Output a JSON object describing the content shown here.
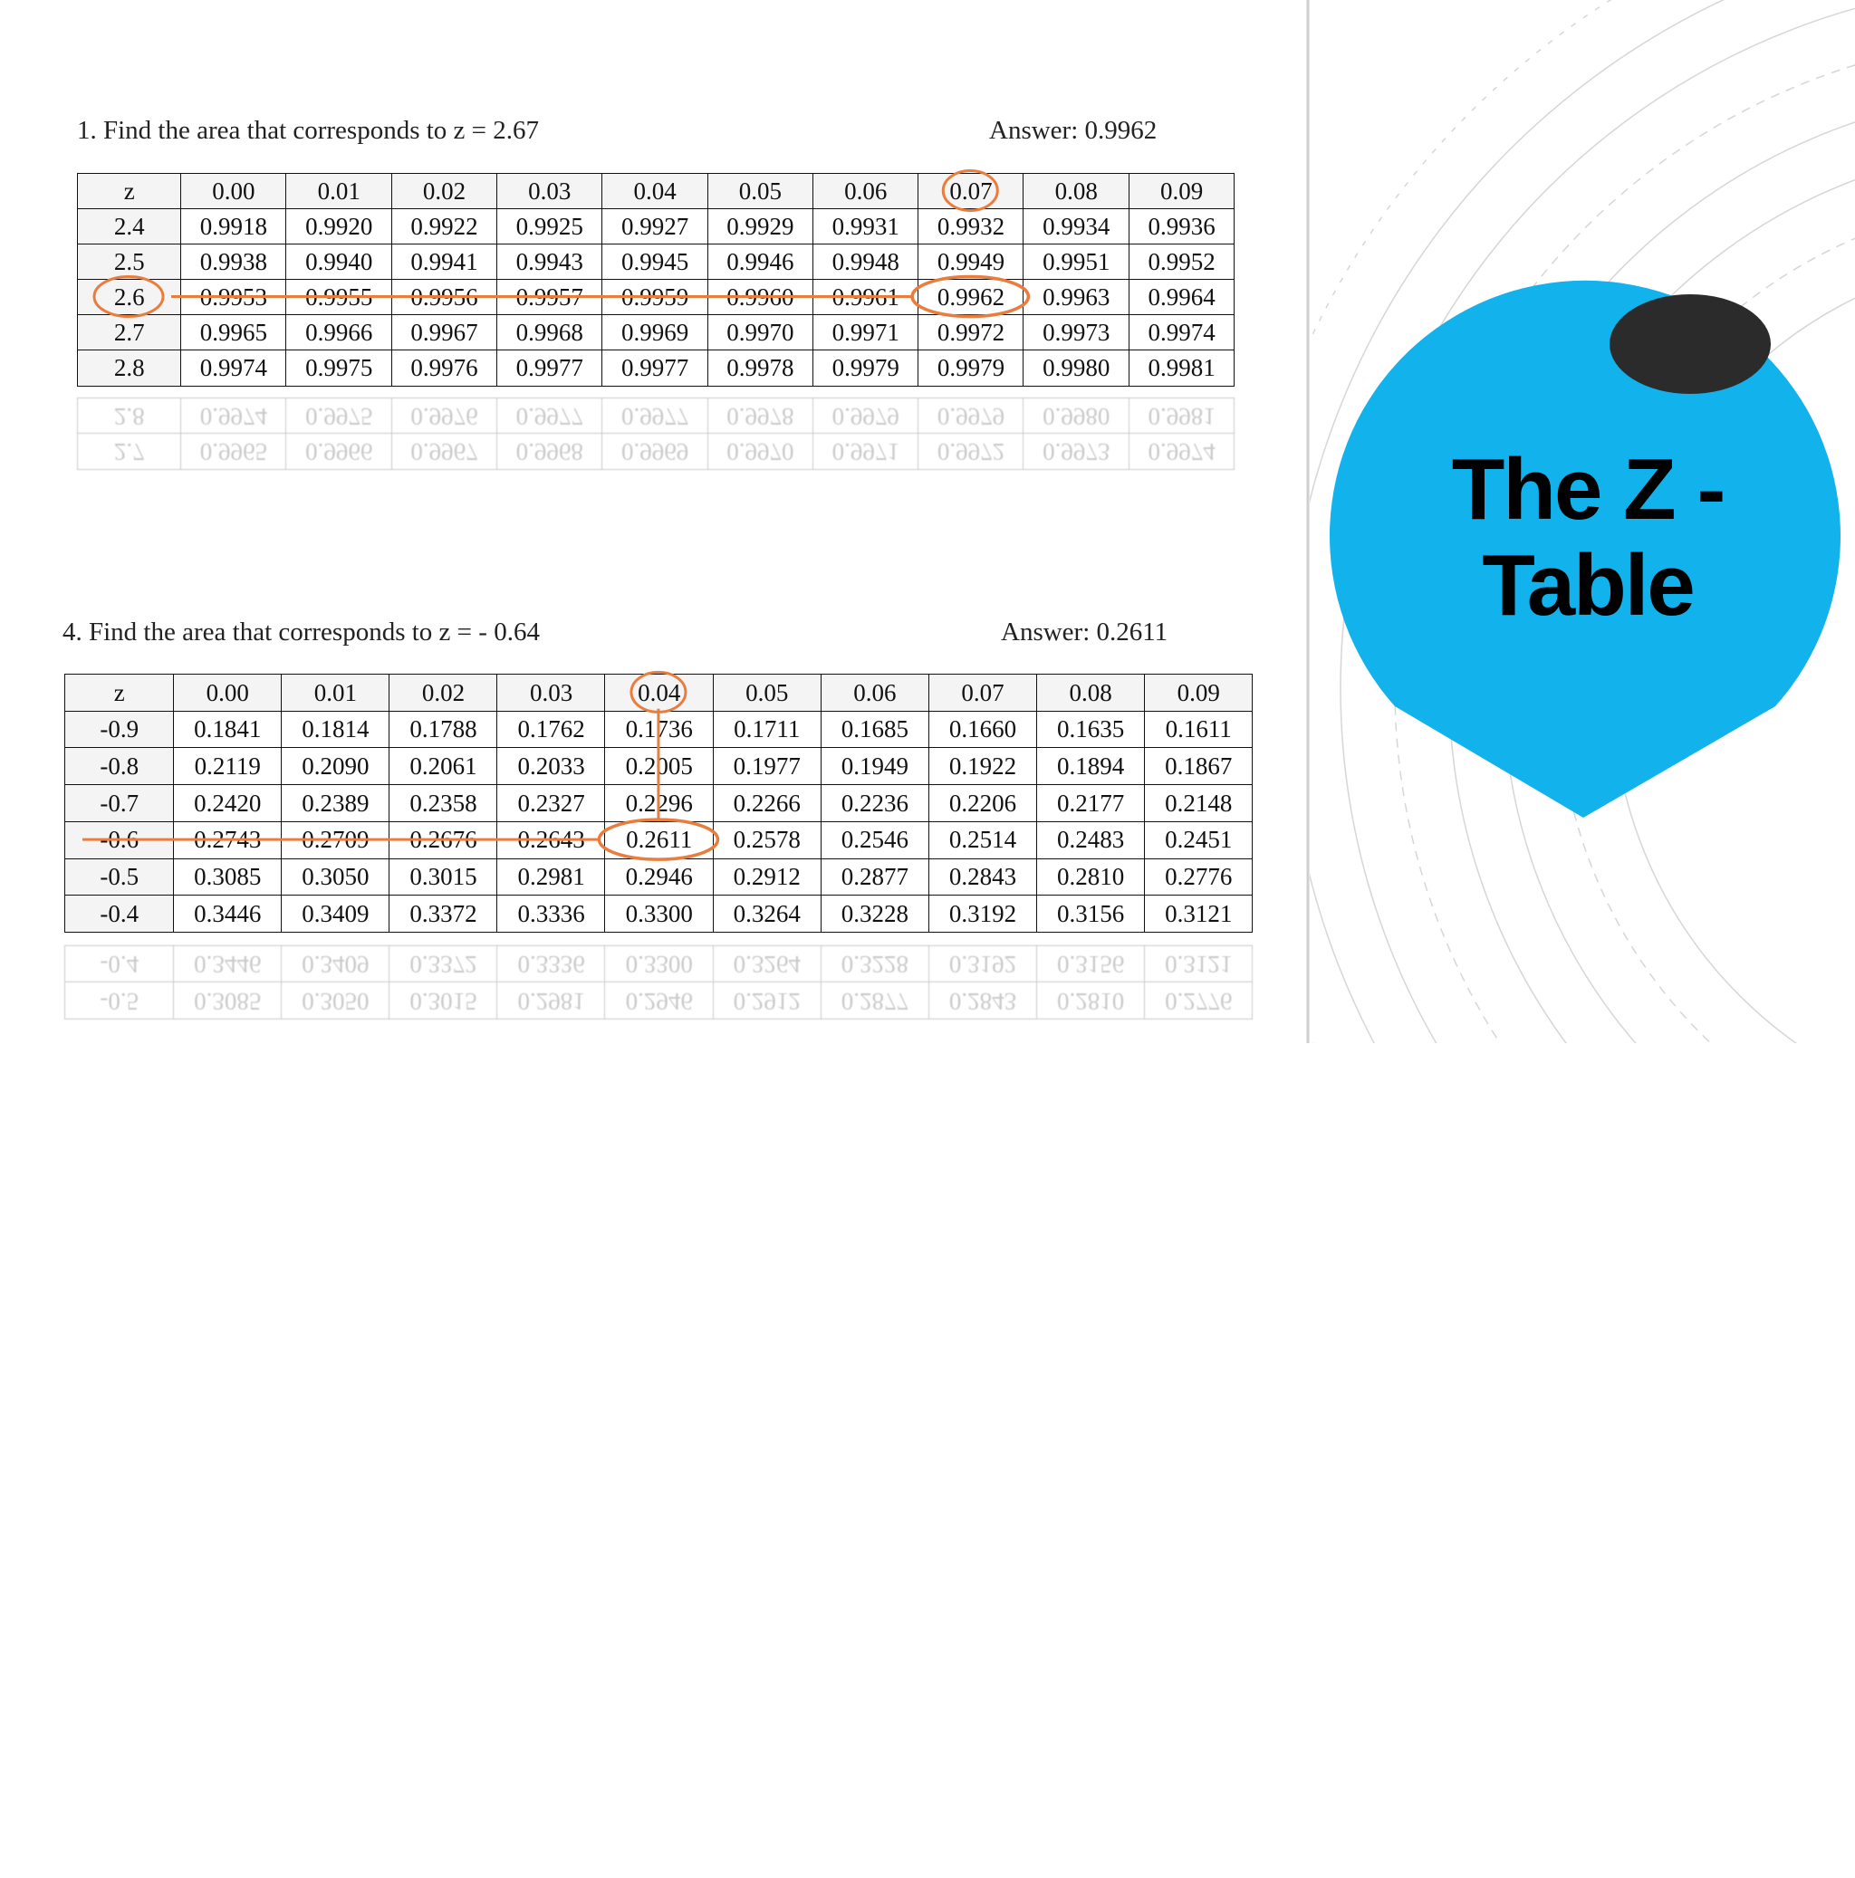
{
  "problems": [
    {
      "question": "1. Find the area that corresponds to z = 2.67",
      "answer": "Answer: 0.9962",
      "table": {
        "header": [
          "z",
          "0.00",
          "0.01",
          "0.02",
          "0.03",
          "0.04",
          "0.05",
          "0.06",
          "0.07",
          "0.08",
          "0.09"
        ],
        "rows": [
          [
            "2.4",
            "0.9918",
            "0.9920",
            "0.9922",
            "0.9925",
            "0.9927",
            "0.9929",
            "0.9931",
            "0.9932",
            "0.9934",
            "0.9936"
          ],
          [
            "2.5",
            "0.9938",
            "0.9940",
            "0.9941",
            "0.9943",
            "0.9945",
            "0.9946",
            "0.9948",
            "0.9949",
            "0.9951",
            "0.9952"
          ],
          [
            "2.6",
            "0.9953",
            "0.9955",
            "0.9956",
            "0.9957",
            "0.9959",
            "0.9960",
            "0.9961",
            "0.9962",
            "0.9963",
            "0.9964"
          ],
          [
            "2.7",
            "0.9965",
            "0.9966",
            "0.9967",
            "0.9968",
            "0.9969",
            "0.9970",
            "0.9971",
            "0.9972",
            "0.9973",
            "0.9974"
          ],
          [
            "2.8",
            "0.9974",
            "0.9975",
            "0.9976",
            "0.9977",
            "0.9977",
            "0.9978",
            "0.9979",
            "0.9979",
            "0.9980",
            "0.9981"
          ]
        ]
      }
    },
    {
      "question": "4. Find the area that corresponds to z = - 0.64",
      "answer": "Answer: 0.2611",
      "table": {
        "header": [
          "z",
          "0.00",
          "0.01",
          "0.02",
          "0.03",
          "0.04",
          "0.05",
          "0.06",
          "0.07",
          "0.08",
          "0.09"
        ],
        "rows": [
          [
            "-0.9",
            "0.1841",
            "0.1814",
            "0.1788",
            "0.1762",
            "0.1736",
            "0.1711",
            "0.1685",
            "0.1660",
            "0.1635",
            "0.1611"
          ],
          [
            "-0.8",
            "0.2119",
            "0.2090",
            "0.2061",
            "0.2033",
            "0.2005",
            "0.1977",
            "0.1949",
            "0.1922",
            "0.1894",
            "0.1867"
          ],
          [
            "-0.7",
            "0.2420",
            "0.2389",
            "0.2358",
            "0.2327",
            "0.2296",
            "0.2266",
            "0.2236",
            "0.2206",
            "0.2177",
            "0.2148"
          ],
          [
            "-0.6",
            "0.2743",
            "0.2709",
            "0.2676",
            "0.2643",
            "0.2611",
            "0.2578",
            "0.2546",
            "0.2514",
            "0.2483",
            "0.2451"
          ],
          [
            "-0.5",
            "0.3085",
            "0.3050",
            "0.3015",
            "0.2981",
            "0.2946",
            "0.2912",
            "0.2877",
            "0.2843",
            "0.2810",
            "0.2776"
          ],
          [
            "-0.4",
            "0.3446",
            "0.3409",
            "0.3372",
            "0.3336",
            "0.3300",
            "0.3264",
            "0.3228",
            "0.3192",
            "0.3156",
            "0.3121"
          ]
        ]
      }
    }
  ],
  "slide_title": "The Z - Table"
}
